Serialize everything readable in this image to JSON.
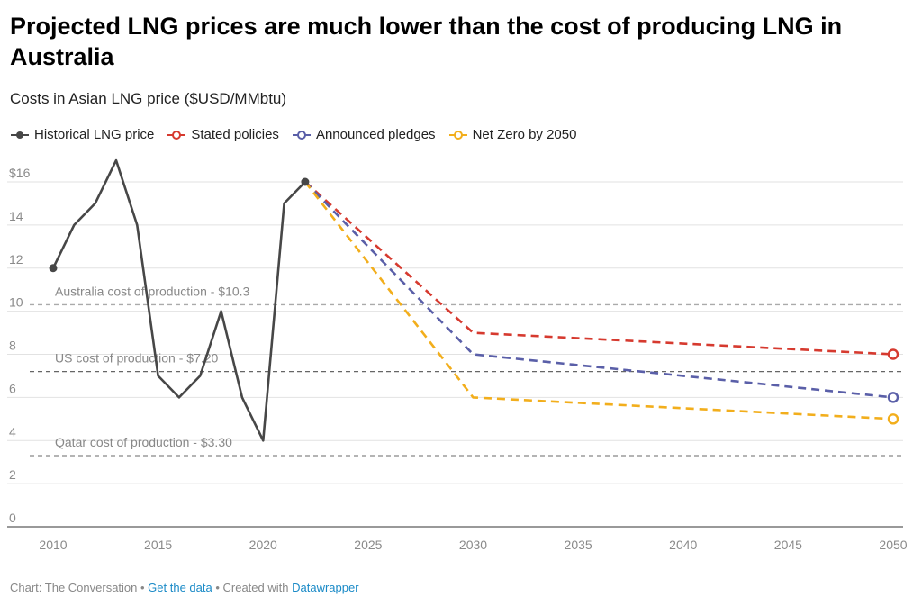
{
  "title": "Projected LNG prices are much lower than the cost of producing LNG in Australia",
  "subtitle": "Costs in Asian LNG price ($USD/MMbtu)",
  "footer": {
    "source": "Chart: The Conversation",
    "sep1": " • ",
    "get_data": "Get the data",
    "sep2": " • Created with ",
    "tool": "Datawrapper"
  },
  "chart_data": {
    "type": "line",
    "xlim": [
      2010,
      2050
    ],
    "ylim": [
      0,
      17
    ],
    "x_ticks": [
      2010,
      2015,
      2020,
      2025,
      2030,
      2035,
      2040,
      2045,
      2050
    ],
    "x_tick_labels": [
      "2010",
      "2015",
      "2020",
      "2025",
      "2030",
      "2035",
      "2040",
      "2045",
      "2050"
    ],
    "y_ticks": [
      0,
      2,
      4,
      6,
      8,
      10,
      12,
      14,
      16
    ],
    "y_tick_labels": [
      "0",
      "2",
      "4",
      "6",
      "8",
      "10",
      "12",
      "14",
      "$16"
    ],
    "grid": true,
    "legend_position": "top-left",
    "series": [
      {
        "name": "Historical LNG price",
        "color": "#474747",
        "style": "solid",
        "marker": "filled-endpoints",
        "x": [
          2010,
          2011,
          2012,
          2013,
          2014,
          2015,
          2016,
          2017,
          2018,
          2019,
          2020,
          2021,
          2022
        ],
        "y": [
          12,
          14,
          15,
          17,
          14,
          7,
          6,
          7,
          10,
          6,
          4,
          15,
          16
        ]
      },
      {
        "name": "Stated policies",
        "color": "#d63a2f",
        "style": "dashed",
        "marker": "open-end",
        "x": [
          2022,
          2030,
          2050
        ],
        "y": [
          16,
          9,
          8
        ]
      },
      {
        "name": "Announced pledges",
        "color": "#5a5fa8",
        "style": "dashed",
        "marker": "open-end",
        "x": [
          2022,
          2030,
          2050
        ],
        "y": [
          16,
          8,
          6
        ]
      },
      {
        "name": "Net Zero by 2050",
        "color": "#f2ae1c",
        "style": "dashed",
        "marker": "open-end",
        "x": [
          2022,
          2030,
          2050
        ],
        "y": [
          16,
          6,
          5
        ]
      }
    ],
    "reference_lines": [
      {
        "label": "Australia cost of production - $10.3",
        "y": 10.3,
        "color": "#aaaaaa"
      },
      {
        "label": "US cost of production - $7.20",
        "y": 7.2,
        "color": "#666666"
      },
      {
        "label": "Qatar cost of production - $3.30",
        "y": 3.3,
        "color": "#888888"
      }
    ]
  }
}
